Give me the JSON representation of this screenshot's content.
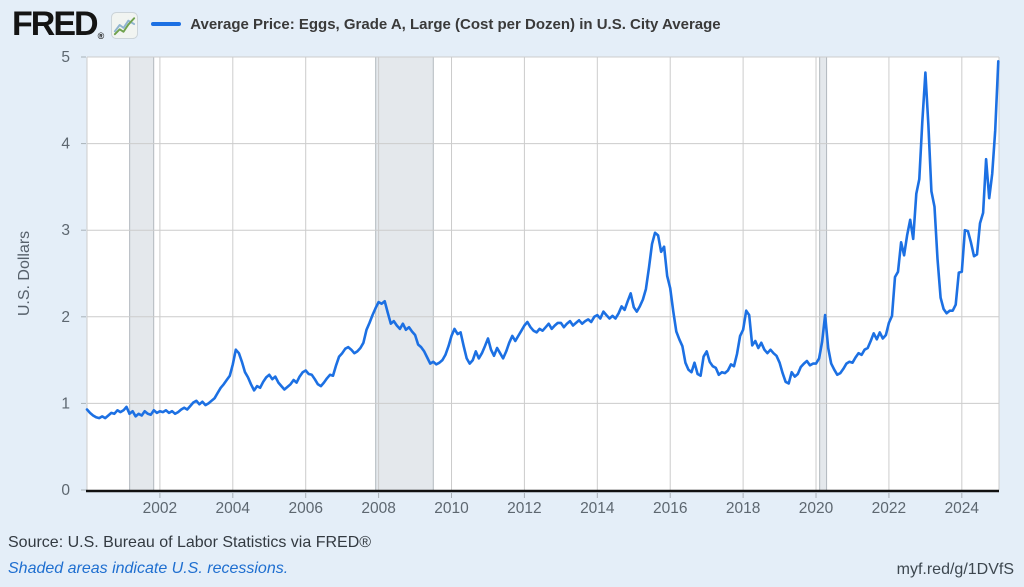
{
  "header": {
    "logo_text": "FRED",
    "logo_reg": "®",
    "series_label": "Average Price: Eggs, Grade A, Large (Cost per Dozen) in U.S. City Average"
  },
  "footer": {
    "source": "Source: U.S. Bureau of Labor Statistics via FRED®",
    "note": "Shaded areas indicate U.S. recessions.",
    "shortlink": "myf.red/g/1DVfS"
  },
  "chart_data": {
    "type": "line",
    "title": "Average Price: Eggs, Grade A, Large (Cost per Dozen) in U.S. City Average",
    "ylabel": "U.S. Dollars",
    "xlabel": "",
    "ylim": [
      0,
      5
    ],
    "x_domain": [
      2000,
      2025.02
    ],
    "x_ticks": [
      2002,
      2004,
      2006,
      2008,
      2010,
      2012,
      2014,
      2016,
      2018,
      2020,
      2022,
      2024
    ],
    "y_ticks": [
      0,
      1,
      2,
      3,
      4,
      5
    ],
    "grid": true,
    "legend_position": "top",
    "x_start_year": 2000,
    "points_per_year": 12,
    "values": [
      0.93,
      0.89,
      0.86,
      0.84,
      0.83,
      0.85,
      0.83,
      0.86,
      0.89,
      0.88,
      0.92,
      0.9,
      0.92,
      0.96,
      0.88,
      0.91,
      0.85,
      0.88,
      0.86,
      0.91,
      0.88,
      0.87,
      0.92,
      0.89,
      0.91,
      0.9,
      0.92,
      0.89,
      0.91,
      0.88,
      0.9,
      0.93,
      0.95,
      0.93,
      0.97,
      1.01,
      1.03,
      0.99,
      1.02,
      0.98,
      1.0,
      1.03,
      1.06,
      1.12,
      1.18,
      1.22,
      1.27,
      1.32,
      1.45,
      1.62,
      1.58,
      1.48,
      1.36,
      1.3,
      1.22,
      1.15,
      1.2,
      1.18,
      1.25,
      1.3,
      1.33,
      1.28,
      1.31,
      1.24,
      1.2,
      1.16,
      1.19,
      1.22,
      1.27,
      1.24,
      1.31,
      1.36,
      1.38,
      1.34,
      1.33,
      1.28,
      1.22,
      1.2,
      1.24,
      1.29,
      1.33,
      1.32,
      1.44,
      1.54,
      1.58,
      1.63,
      1.65,
      1.62,
      1.58,
      1.6,
      1.64,
      1.7,
      1.85,
      1.93,
      2.02,
      2.1,
      2.17,
      2.15,
      2.18,
      2.05,
      1.92,
      1.95,
      1.9,
      1.86,
      1.92,
      1.85,
      1.88,
      1.83,
      1.79,
      1.68,
      1.65,
      1.6,
      1.53,
      1.46,
      1.48,
      1.45,
      1.47,
      1.5,
      1.56,
      1.66,
      1.78,
      1.86,
      1.8,
      1.82,
      1.66,
      1.52,
      1.46,
      1.5,
      1.6,
      1.52,
      1.58,
      1.66,
      1.75,
      1.62,
      1.55,
      1.64,
      1.58,
      1.52,
      1.6,
      1.7,
      1.78,
      1.72,
      1.78,
      1.84,
      1.9,
      1.94,
      1.88,
      1.84,
      1.82,
      1.86,
      1.84,
      1.88,
      1.92,
      1.86,
      1.9,
      1.93,
      1.93,
      1.88,
      1.92,
      1.95,
      1.9,
      1.93,
      1.96,
      1.92,
      1.95,
      1.97,
      1.94,
      2.0,
      2.02,
      1.98,
      2.06,
      2.02,
      1.98,
      2.01,
      1.98,
      2.04,
      2.12,
      2.08,
      2.18,
      2.27,
      2.11,
      2.06,
      2.12,
      2.2,
      2.32,
      2.57,
      2.84,
      2.97,
      2.94,
      2.75,
      2.81,
      2.47,
      2.33,
      2.06,
      1.83,
      1.74,
      1.66,
      1.47,
      1.39,
      1.36,
      1.47,
      1.34,
      1.32,
      1.54,
      1.6,
      1.48,
      1.43,
      1.41,
      1.33,
      1.36,
      1.35,
      1.38,
      1.45,
      1.43,
      1.57,
      1.78,
      1.85,
      2.07,
      2.02,
      1.67,
      1.72,
      1.64,
      1.7,
      1.62,
      1.58,
      1.62,
      1.58,
      1.55,
      1.47,
      1.35,
      1.25,
      1.23,
      1.36,
      1.31,
      1.34,
      1.42,
      1.46,
      1.49,
      1.44,
      1.46,
      1.46,
      1.52,
      1.71,
      2.02,
      1.64,
      1.46,
      1.39,
      1.33,
      1.35,
      1.4,
      1.46,
      1.48,
      1.47,
      1.53,
      1.58,
      1.56,
      1.62,
      1.64,
      1.72,
      1.81,
      1.74,
      1.82,
      1.75,
      1.79,
      1.93,
      2.01,
      2.46,
      2.52,
      2.86,
      2.71,
      2.94,
      3.12,
      2.9,
      3.42,
      3.59,
      4.25,
      4.82,
      4.21,
      3.45,
      3.27,
      2.67,
      2.22,
      2.09,
      2.04,
      2.07,
      2.07,
      2.14,
      2.51,
      2.52,
      3.0,
      2.99,
      2.86,
      2.7,
      2.72,
      3.08,
      3.2,
      3.82,
      3.37,
      3.65,
      4.15,
      4.95
    ],
    "recessions": [
      {
        "start": 2001.17,
        "end": 2001.83
      },
      {
        "start": 2007.92,
        "end": 2009.5
      },
      {
        "start": 2020.1,
        "end": 2020.29
      }
    ],
    "colors": {
      "line": "#1c70e3",
      "recession_fill": "#e4e8ec",
      "recession_edge": "#b2b8be",
      "grid": "#cccccc",
      "axis": "#111111",
      "tick_mark": "#a9b1b8",
      "tick_text": "#5d6770",
      "axis_title_text": "#57616b",
      "plot_background": "#ffffff",
      "page_background": "#e4eef8"
    }
  }
}
